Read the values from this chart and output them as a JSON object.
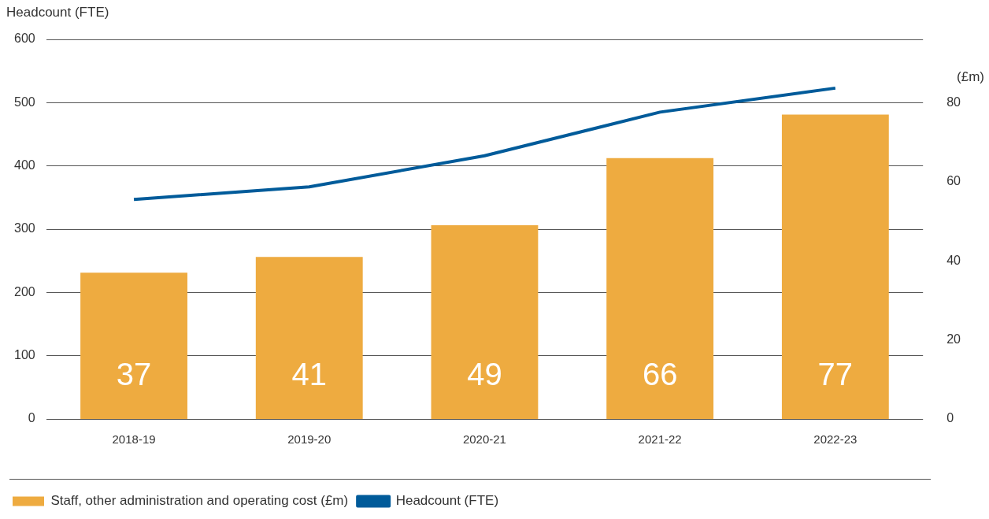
{
  "chart_data": {
    "type": "bar",
    "categories": [
      "2018-19",
      "2019-20",
      "2020-21",
      "2021-22",
      "2022-23"
    ],
    "series": [
      {
        "name": "Staff, other administration and operating cost (£m)",
        "axis": "y2",
        "color": "#eeab40",
        "values": [
          37,
          41,
          49,
          66,
          77
        ],
        "value_labels": [
          "37",
          "41",
          "49",
          "66",
          "77"
        ]
      },
      {
        "name": "Headcount (FTE)",
        "type": "line",
        "color": "#005b9a",
        "values": [
          347,
          367,
          416,
          485,
          523
        ]
      }
    ],
    "ylabel": "Headcount (FTE)",
    "y2label": "(£m)",
    "ylim": [
      0,
      600
    ],
    "yticks": [
      0,
      100,
      200,
      300,
      400,
      500,
      600
    ],
    "y2lim": [
      0,
      96
    ],
    "y2ticks": [
      0,
      20,
      40,
      60,
      80
    ],
    "grid": "y",
    "legend": "bottom",
    "marker": "none"
  }
}
